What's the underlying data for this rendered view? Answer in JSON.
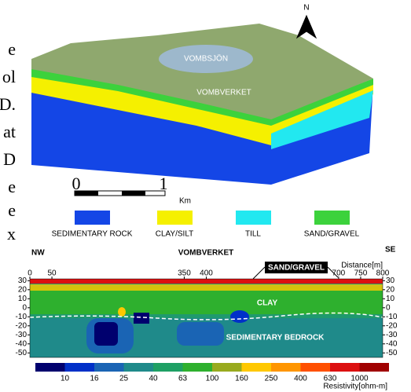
{
  "margin_fragments": [
    "e",
    "ol",
    "D.",
    "at",
    "D",
    "e",
    "e",
    "x"
  ],
  "block": {
    "north": "N",
    "lake": "VOMBSJÖN",
    "site": "VOMBVERKET",
    "scale": {
      "start": "0",
      "end": "1",
      "unit": "Km"
    }
  },
  "legend": [
    {
      "label": "SEDIMENTARY ROCK",
      "color": "#1446e6"
    },
    {
      "label": "CLAY/SILT",
      "color": "#f5f000"
    },
    {
      "label": "TILL",
      "color": "#22e8f0"
    },
    {
      "label": "SAND/GRAVEL",
      "color": "#3cd23c"
    }
  ],
  "profile": {
    "left": "NW",
    "center": "VOMBVERKET",
    "right": "SE",
    "x_label": "Distance[m]",
    "xlim": [
      0,
      800
    ],
    "xticks": [
      0,
      50,
      350,
      400,
      700,
      750,
      800
    ],
    "ylim": [
      -55,
      32
    ],
    "yticks": [
      30,
      20,
      10,
      0,
      -10,
      -20,
      -30,
      -40,
      -50
    ],
    "callout": "SAND/GRAVEL",
    "clay": "CLAY",
    "bedrock": "SEDIMENTARY BEDROCK",
    "colorbar": {
      "ticks": [
        10,
        16,
        25,
        40,
        63,
        100,
        160,
        250,
        400,
        630,
        1000
      ],
      "colors": [
        "#00006e",
        "#0030c8",
        "#1a64b4",
        "#1f8a8a",
        "#1ea064",
        "#2eb02e",
        "#98aa1e",
        "#ffc800",
        "#ff9600",
        "#ff5000",
        "#dc1010",
        "#a00000"
      ],
      "label": "Resistivity[ohm-m]"
    }
  }
}
